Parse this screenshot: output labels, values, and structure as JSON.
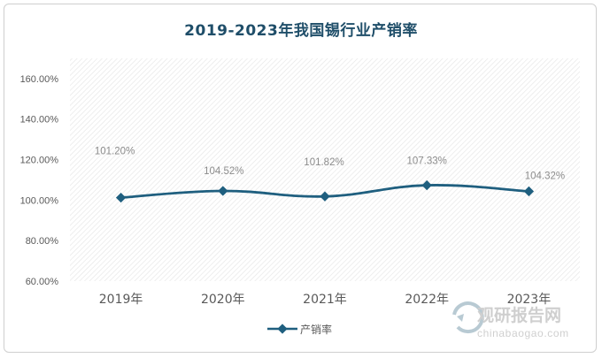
{
  "title": "2019-2023年我国锡行业产销率",
  "chart_data": {
    "type": "line",
    "title": "2019-2023年我国锡行业产销率",
    "categories": [
      "2019年",
      "2020年",
      "2021年",
      "2022年",
      "2023年"
    ],
    "series": [
      {
        "name": "产销率",
        "values": [
          101.2,
          104.52,
          101.82,
          107.33,
          104.32
        ],
        "labels": [
          "101.20%",
          "104.52%",
          "101.82%",
          "107.33%",
          "104.32%"
        ]
      }
    ],
    "yticks": [
      "60.00%",
      "80.00%",
      "100.00%",
      "120.00%",
      "140.00%",
      "160.00%"
    ],
    "ylim": [
      60,
      170
    ],
    "grid": false,
    "legend_position": "bottom",
    "colors": {
      "line": "#1f5f7f",
      "axis_text": "#595959",
      "label_text": "#8c8c8c",
      "title": "#1f4e69"
    }
  },
  "watermark": {
    "brand": "观研报告网",
    "url": "chinabaogao.com"
  }
}
